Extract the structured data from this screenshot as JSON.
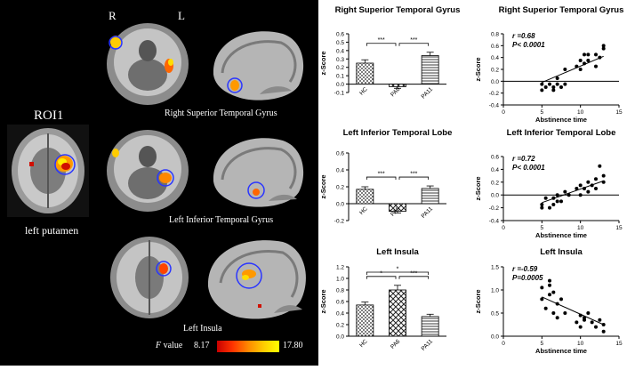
{
  "brain_panel": {
    "roi_title": "ROI1",
    "roi_caption": "left putamen",
    "orient_right": "R",
    "orient_left": "L",
    "row_labels": [
      "Right Superior Temporal Gyrus",
      "Left Inferior Temporal Gyrus",
      "Left Insula"
    ],
    "colorbar": {
      "label_prefix": "F",
      "label_suffix": "value",
      "min": "8.17",
      "max": "17.80",
      "colors": [
        "#c80000",
        "#ff3300",
        "#ff8800",
        "#ffcc00",
        "#ffff00"
      ]
    }
  },
  "chart_data": [
    {
      "type": "bar",
      "title": "Right Superior Temporal Gyrus",
      "ylabel": "z-Score",
      "categories": [
        "HC",
        "PA6",
        "PA11"
      ],
      "values": [
        0.25,
        -0.03,
        0.34
      ],
      "errors": [
        0.04,
        0.02,
        0.04
      ],
      "ylim": [
        -0.1,
        0.6
      ],
      "ticks": [
        "-0.1",
        "0.0",
        "0.1",
        "0.2",
        "0.3",
        "0.4",
        "0.5",
        "0.6"
      ],
      "tick_values": [
        -0.1,
        0.0,
        0.1,
        0.2,
        0.3,
        0.4,
        0.5,
        0.6
      ],
      "patterns": [
        "dots",
        "check",
        "hstripe"
      ],
      "significance": [
        {
          "from": 0,
          "to": 1,
          "label": "***",
          "level": 0
        },
        {
          "from": 1,
          "to": 2,
          "label": "***",
          "level": 0
        }
      ]
    },
    {
      "type": "bar",
      "title": "Left Inferior Temporal Lobe",
      "ylabel": "z-Score",
      "categories": [
        "HC",
        "PA6",
        "PA11"
      ],
      "values": [
        0.17,
        -0.09,
        0.18
      ],
      "errors": [
        0.03,
        0.02,
        0.03
      ],
      "ylim": [
        -0.2,
        0.6
      ],
      "ticks": [
        "-0.2",
        "0.0",
        "0.2",
        "0.4",
        "0.6"
      ],
      "tick_values": [
        -0.2,
        0.0,
        0.2,
        0.4,
        0.6
      ],
      "patterns": [
        "dots",
        "check",
        "hstripe"
      ],
      "significance": [
        {
          "from": 0,
          "to": 1,
          "label": "***",
          "level": 0
        },
        {
          "from": 1,
          "to": 2,
          "label": "***",
          "level": 0
        }
      ]
    },
    {
      "type": "bar",
      "title": "Left Insula",
      "ylabel": "z-Score",
      "categories": [
        "HC",
        "PA6",
        "PA11"
      ],
      "values": [
        0.54,
        0.8,
        0.34
      ],
      "errors": [
        0.05,
        0.08,
        0.04
      ],
      "ylim": [
        0.0,
        1.2
      ],
      "ticks": [
        "0.0",
        "0.2",
        "0.4",
        "0.6",
        "0.8",
        "1.0",
        "1.2"
      ],
      "tick_values": [
        0.0,
        0.2,
        0.4,
        0.6,
        0.8,
        1.0,
        1.2
      ],
      "patterns": [
        "dots",
        "check",
        "hstripe"
      ],
      "significance": [
        {
          "from": 0,
          "to": 1,
          "label": "*",
          "level": 0
        },
        {
          "from": 1,
          "to": 2,
          "label": "***",
          "level": 0
        },
        {
          "from": 0,
          "to": 2,
          "label": "*",
          "level": 1
        }
      ]
    },
    {
      "type": "scatter",
      "title": "Right Superior Temporal Gyrus",
      "xlabel": "Abstinence time",
      "ylabel": "z-Score",
      "stat_r": "r =0.68",
      "stat_p": "P< 0.0001",
      "xlim": [
        0,
        15
      ],
      "ylim": [
        -0.4,
        0.8
      ],
      "xticks": [
        "0",
        "5",
        "10",
        "15"
      ],
      "xtick_values": [
        0,
        5,
        10,
        15
      ],
      "yticks": [
        "-0.4",
        "-0.2",
        "0.0",
        "0.2",
        "0.4",
        "0.6",
        "0.8"
      ],
      "ytick_values": [
        -0.4,
        -0.2,
        0.0,
        0.2,
        0.4,
        0.6,
        0.8
      ],
      "x": [
        5,
        5,
        5.5,
        6,
        6.5,
        6.5,
        7,
        7,
        7.5,
        8,
        8,
        9.5,
        10,
        10,
        10.5,
        10.5,
        11,
        11,
        12,
        12,
        12.5,
        13,
        13
      ],
      "y": [
        -0.05,
        -0.15,
        -0.1,
        -0.05,
        -0.1,
        -0.15,
        -0.05,
        0.05,
        -0.1,
        0.2,
        -0.05,
        0.25,
        0.35,
        0.2,
        0.3,
        0.45,
        0.35,
        0.45,
        0.25,
        0.45,
        0.4,
        0.55,
        0.6
      ],
      "fit": [
        [
          5,
          -0.02
        ],
        [
          13,
          0.42
        ]
      ],
      "zero_line": true
    },
    {
      "type": "scatter",
      "title": "Left Inferior Temporal Lobe",
      "xlabel": "Abstinence time",
      "ylabel": "z-Score",
      "stat_r": "r =0.72",
      "stat_p": "P< 0.0001",
      "xlim": [
        0,
        15
      ],
      "ylim": [
        -0.4,
        0.6
      ],
      "xticks": [
        "0",
        "5",
        "10",
        "15"
      ],
      "xtick_values": [
        0,
        5,
        10,
        15
      ],
      "yticks": [
        "-0.4",
        "-0.2",
        "0.0",
        "0.2",
        "0.4",
        "0.6"
      ],
      "ytick_values": [
        -0.4,
        -0.2,
        0.0,
        0.2,
        0.4,
        0.6
      ],
      "x": [
        5,
        5,
        5.5,
        6,
        6.5,
        6.5,
        7,
        7,
        7.5,
        8,
        8.5,
        9.5,
        10,
        10,
        10.5,
        11,
        11,
        11.5,
        12,
        12,
        12.5,
        13,
        13
      ],
      "y": [
        -0.15,
        -0.2,
        -0.05,
        -0.2,
        -0.15,
        -0.05,
        -0.1,
        0.0,
        -0.1,
        0.05,
        0.0,
        0.1,
        0.15,
        0.0,
        0.1,
        0.05,
        0.2,
        0.15,
        0.25,
        0.1,
        0.45,
        0.2,
        0.3
      ],
      "fit": [
        [
          5,
          -0.12
        ],
        [
          13,
          0.22
        ]
      ],
      "zero_line": true
    },
    {
      "type": "scatter",
      "title": "Left Insula",
      "xlabel": "Abstinence time",
      "ylabel": "z-Score",
      "stat_r": "r =-0.59",
      "stat_p": "P=0.0005",
      "xlim": [
        0,
        15
      ],
      "ylim": [
        0.0,
        1.5
      ],
      "xticks": [
        "0",
        "5",
        "10",
        "15"
      ],
      "xtick_values": [
        0,
        5,
        10,
        15
      ],
      "yticks": [
        "0.0",
        "0.5",
        "1.0",
        "1.5"
      ],
      "ytick_values": [
        0.0,
        0.5,
        1.0,
        1.5
      ],
      "x": [
        5,
        5,
        5.5,
        6,
        6,
        6.5,
        6.5,
        7,
        7,
        7.5,
        8,
        9.5,
        10,
        10,
        10.5,
        10.5,
        11,
        11.5,
        12,
        12.5,
        13,
        13,
        6
      ],
      "y": [
        0.8,
        1.05,
        0.6,
        0.9,
        1.1,
        0.95,
        0.5,
        0.7,
        0.4,
        0.8,
        0.5,
        0.3,
        0.45,
        0.2,
        0.35,
        0.4,
        0.5,
        0.3,
        0.2,
        0.35,
        0.25,
        0.1,
        1.2
      ],
      "fit": [
        [
          5,
          0.85
        ],
        [
          13,
          0.25
        ]
      ],
      "zero_line": false
    }
  ]
}
